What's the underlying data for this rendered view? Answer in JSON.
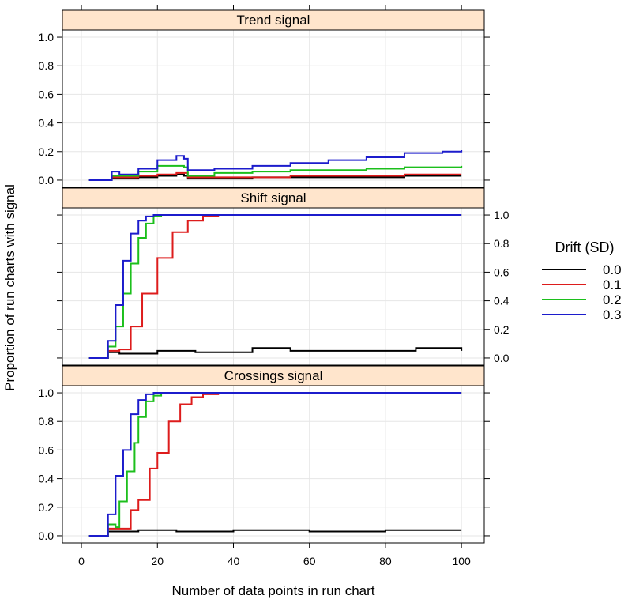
{
  "chart_data": {
    "type": "line",
    "style": "step",
    "xlabel": "Number of data points in run chart",
    "ylabel": "Proportion of run charts with signal",
    "xlim": [
      -5,
      106
    ],
    "ylim": [
      -0.05,
      1.05
    ],
    "x_ticks": [
      0,
      20,
      40,
      60,
      80,
      100
    ],
    "y_ticks": [
      0.0,
      0.2,
      0.4,
      0.6,
      0.8,
      1.0
    ],
    "y_tick_labels": [
      "0.0",
      "0.2",
      "0.4",
      "0.6",
      "0.8",
      "1.0"
    ],
    "legend": {
      "title": "Drift (SD)",
      "position": "right",
      "entries": [
        {
          "label": "0.0",
          "color": "#000000"
        },
        {
          "label": "0.1",
          "color": "#dd1c1c"
        },
        {
          "label": "0.2",
          "color": "#1cbf1c"
        },
        {
          "label": "0.3",
          "color": "#1c1ccc"
        }
      ]
    },
    "panels": [
      {
        "title": "Trend signal",
        "series": [
          {
            "name": "0.0",
            "x": [
              2,
              6,
              8,
              10,
              15,
              20,
              25,
              27,
              28,
              35,
              45,
              55,
              65,
              75,
              85,
              95,
              100
            ],
            "y": [
              0,
              0,
              0.01,
              0.01,
              0.02,
              0.03,
              0.04,
              0.03,
              0.01,
              0.01,
              0.02,
              0.02,
              0.02,
              0.02,
              0.03,
              0.03,
              0.03
            ]
          },
          {
            "name": "0.1",
            "x": [
              2,
              6,
              8,
              10,
              15,
              20,
              25,
              27,
              28,
              35,
              45,
              55,
              65,
              75,
              85,
              95,
              100
            ],
            "y": [
              0,
              0,
              0.02,
              0.02,
              0.03,
              0.04,
              0.05,
              0.05,
              0.02,
              0.02,
              0.02,
              0.03,
              0.03,
              0.03,
              0.04,
              0.04,
              0.04
            ]
          },
          {
            "name": "0.2",
            "x": [
              2,
              6,
              8,
              10,
              15,
              20,
              25,
              27,
              28,
              35,
              45,
              55,
              65,
              75,
              85,
              95,
              100
            ],
            "y": [
              0,
              0,
              0.03,
              0.03,
              0.06,
              0.1,
              0.1,
              0.09,
              0.03,
              0.05,
              0.06,
              0.07,
              0.07,
              0.08,
              0.09,
              0.09,
              0.1
            ]
          },
          {
            "name": "0.3",
            "x": [
              2,
              6,
              8,
              10,
              15,
              20,
              25,
              27,
              28,
              35,
              45,
              55,
              65,
              75,
              85,
              95,
              100
            ],
            "y": [
              0,
              0,
              0.06,
              0.04,
              0.08,
              0.14,
              0.17,
              0.15,
              0.07,
              0.08,
              0.1,
              0.12,
              0.14,
              0.16,
              0.19,
              0.2,
              0.21
            ]
          }
        ]
      },
      {
        "title": "Shift signal",
        "series": [
          {
            "name": "0.0",
            "x": [
              2,
              6,
              7,
              10,
              20,
              30,
              45,
              55,
              70,
              88,
              100
            ],
            "y": [
              0,
              0,
              0.04,
              0.03,
              0.05,
              0.04,
              0.07,
              0.05,
              0.05,
              0.07,
              0.05
            ]
          },
          {
            "name": "0.1",
            "x": [
              2,
              6,
              7,
              10,
              13,
              16,
              20,
              24,
              28,
              32,
              36,
              100
            ],
            "y": [
              0,
              0,
              0.05,
              0.06,
              0.22,
              0.45,
              0.7,
              0.88,
              0.96,
              0.99,
              1.0,
              1.0
            ]
          },
          {
            "name": "0.2",
            "x": [
              2,
              6,
              7,
              9,
              11,
              13,
              15,
              17,
              19,
              21,
              100
            ],
            "y": [
              0,
              0,
              0.08,
              0.22,
              0.45,
              0.66,
              0.84,
              0.94,
              0.99,
              1.0,
              1.0
            ]
          },
          {
            "name": "0.3",
            "x": [
              2,
              6,
              7,
              9,
              11,
              13,
              15,
              17,
              19,
              100
            ],
            "y": [
              0,
              0,
              0.12,
              0.37,
              0.68,
              0.87,
              0.96,
              0.99,
              1.0,
              1.0
            ]
          }
        ]
      },
      {
        "title": "Crossings signal",
        "series": [
          {
            "name": "0.0",
            "x": [
              2,
              6,
              7,
              10,
              15,
              25,
              40,
              60,
              80,
              100
            ],
            "y": [
              0,
              0,
              0.03,
              0.03,
              0.04,
              0.03,
              0.04,
              0.03,
              0.04,
              0.04
            ]
          },
          {
            "name": "0.1",
            "x": [
              2,
              6,
              7,
              10,
              13,
              15,
              18,
              20,
              23,
              26,
              29,
              32,
              36,
              40,
              100
            ],
            "y": [
              0,
              0,
              0.05,
              0.05,
              0.18,
              0.25,
              0.47,
              0.58,
              0.8,
              0.92,
              0.97,
              0.99,
              1.0,
              1.0,
              1.0
            ]
          },
          {
            "name": "0.2",
            "x": [
              2,
              6,
              7,
              9,
              10,
              12,
              14,
              15,
              17,
              19,
              21,
              100
            ],
            "y": [
              0,
              0,
              0.08,
              0.06,
              0.24,
              0.45,
              0.65,
              0.83,
              0.94,
              0.98,
              1.0,
              1.0
            ]
          },
          {
            "name": "0.3",
            "x": [
              2,
              6,
              7,
              9,
              11,
              13,
              15,
              17,
              19,
              100
            ],
            "y": [
              0,
              0,
              0.15,
              0.42,
              0.6,
              0.85,
              0.95,
              0.99,
              1.0,
              1.0
            ]
          }
        ]
      }
    ]
  }
}
